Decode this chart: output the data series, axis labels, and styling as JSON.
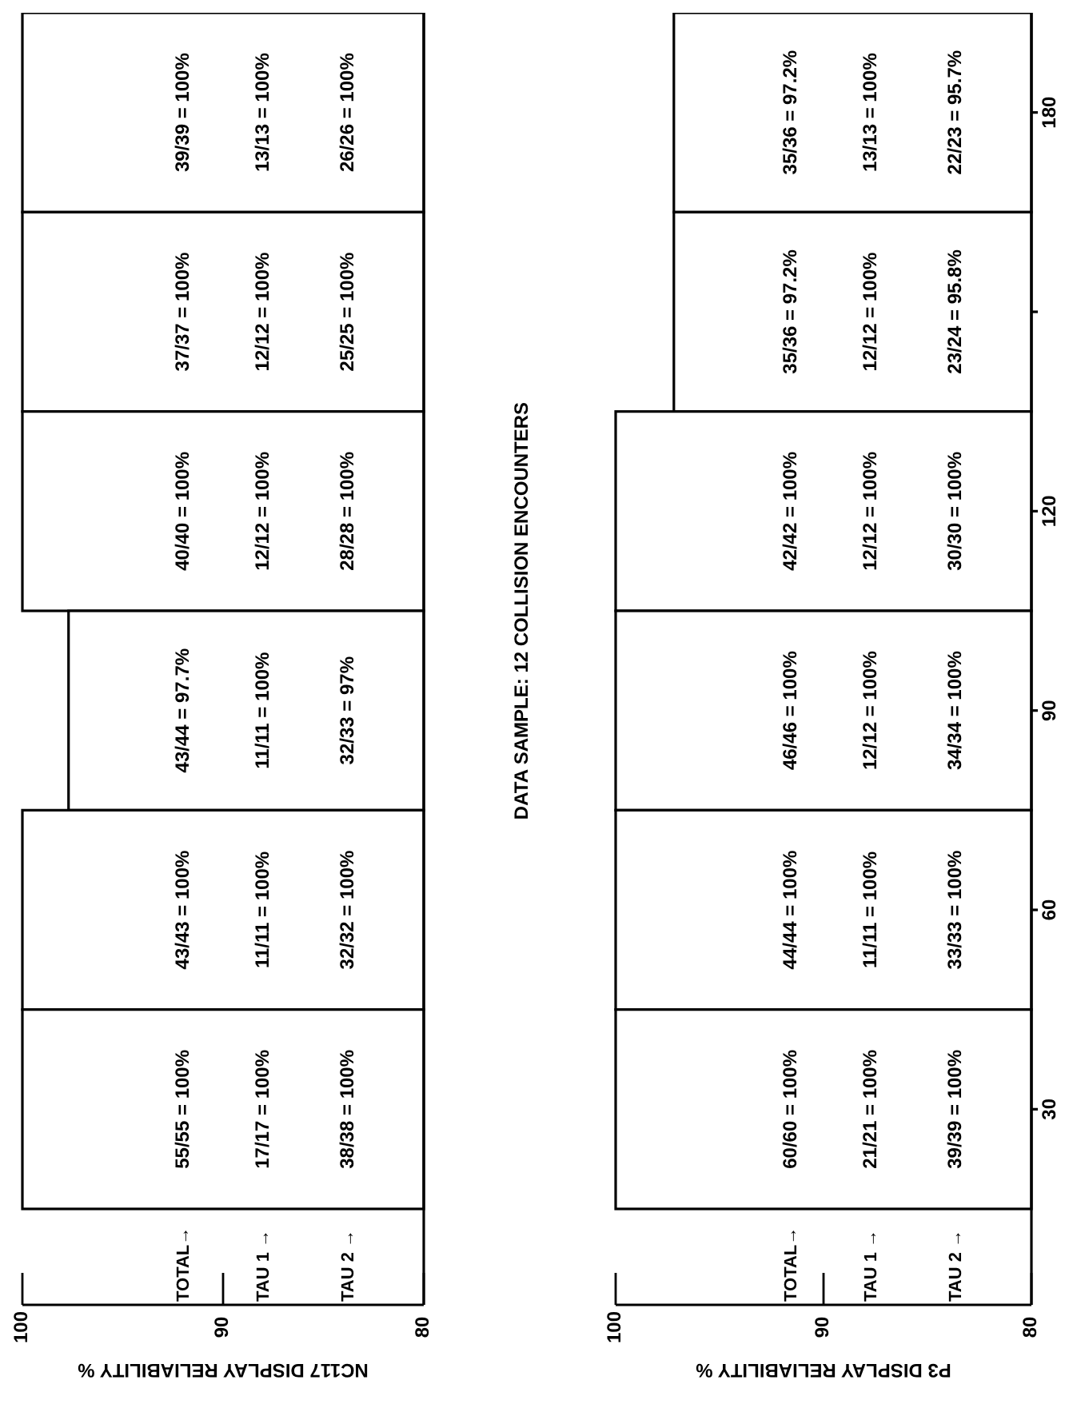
{
  "chart_data": [
    {
      "type": "bar",
      "orientation": "horizontal",
      "xlabel": "NC117 DISPLAY RELIABILITY %",
      "categories": [
        "180",
        null,
        "120",
        "90",
        "60",
        "30"
      ],
      "values": [
        100,
        100,
        100,
        97.7,
        100,
        100
      ],
      "color": "#ffffff",
      "value_labels": [
        "39/39 = 100%\n13/13 = 100%\n26/26 = 100%",
        "37/37 = 100%\n12/12 = 100%\n25/25 = 100%",
        "40/40 = 100%\n12/12 = 100%\n28/28 = 100%",
        "43/44 = 97.7%\n11/11 = 100%\n32/33 = 97%",
        "43/43 = 100%\n11/11 = 100%\n32/32 = 100%",
        "55/55 = 100%\n17/17 = 100%\n38/38 = 100%"
      ],
      "xlim": [
        100,
        80
      ],
      "xticks": [
        100,
        90,
        80
      ],
      "annotations": [
        "TOTAL→",
        "TAU 1 →",
        "TAU 2 →"
      ],
      "tick_labels": "x"
    },
    {
      "type": "bar",
      "orientation": "horizontal",
      "title": "DATA SAMPLE:  12 COLLISION ENCOUNTERS",
      "xlabel": "P3 DISPLAY RELIABILITY %",
      "categories": [
        "180",
        null,
        "120",
        "90",
        "60",
        "30"
      ],
      "values": [
        97.2,
        97.2,
        100,
        100,
        100,
        100
      ],
      "color": "#ffffff",
      "value_labels": [
        "35/36 = 97.2%\n13/13 = 100%\n22/23 = 95.7%",
        "35/36 = 97.2%\n12/12 = 100%\n23/24 = 95.8%",
        "42/42 = 100%\n12/12 = 100%\n30/30 = 100%",
        "46/46 = 100%\n12/12 = 100%\n34/34 = 100%",
        "44/44 = 100%\n11/11 = 100%\n33/33 = 100%",
        "60/60 = 100%\n21/21 = 100%\n39/39 = 100%"
      ],
      "xlim": [
        100,
        80
      ],
      "xticks": [
        100,
        90,
        80
      ],
      "annotations": [
        "TOTAL→",
        "TAU 1 →",
        "TAU 2 →"
      ]
    }
  ]
}
